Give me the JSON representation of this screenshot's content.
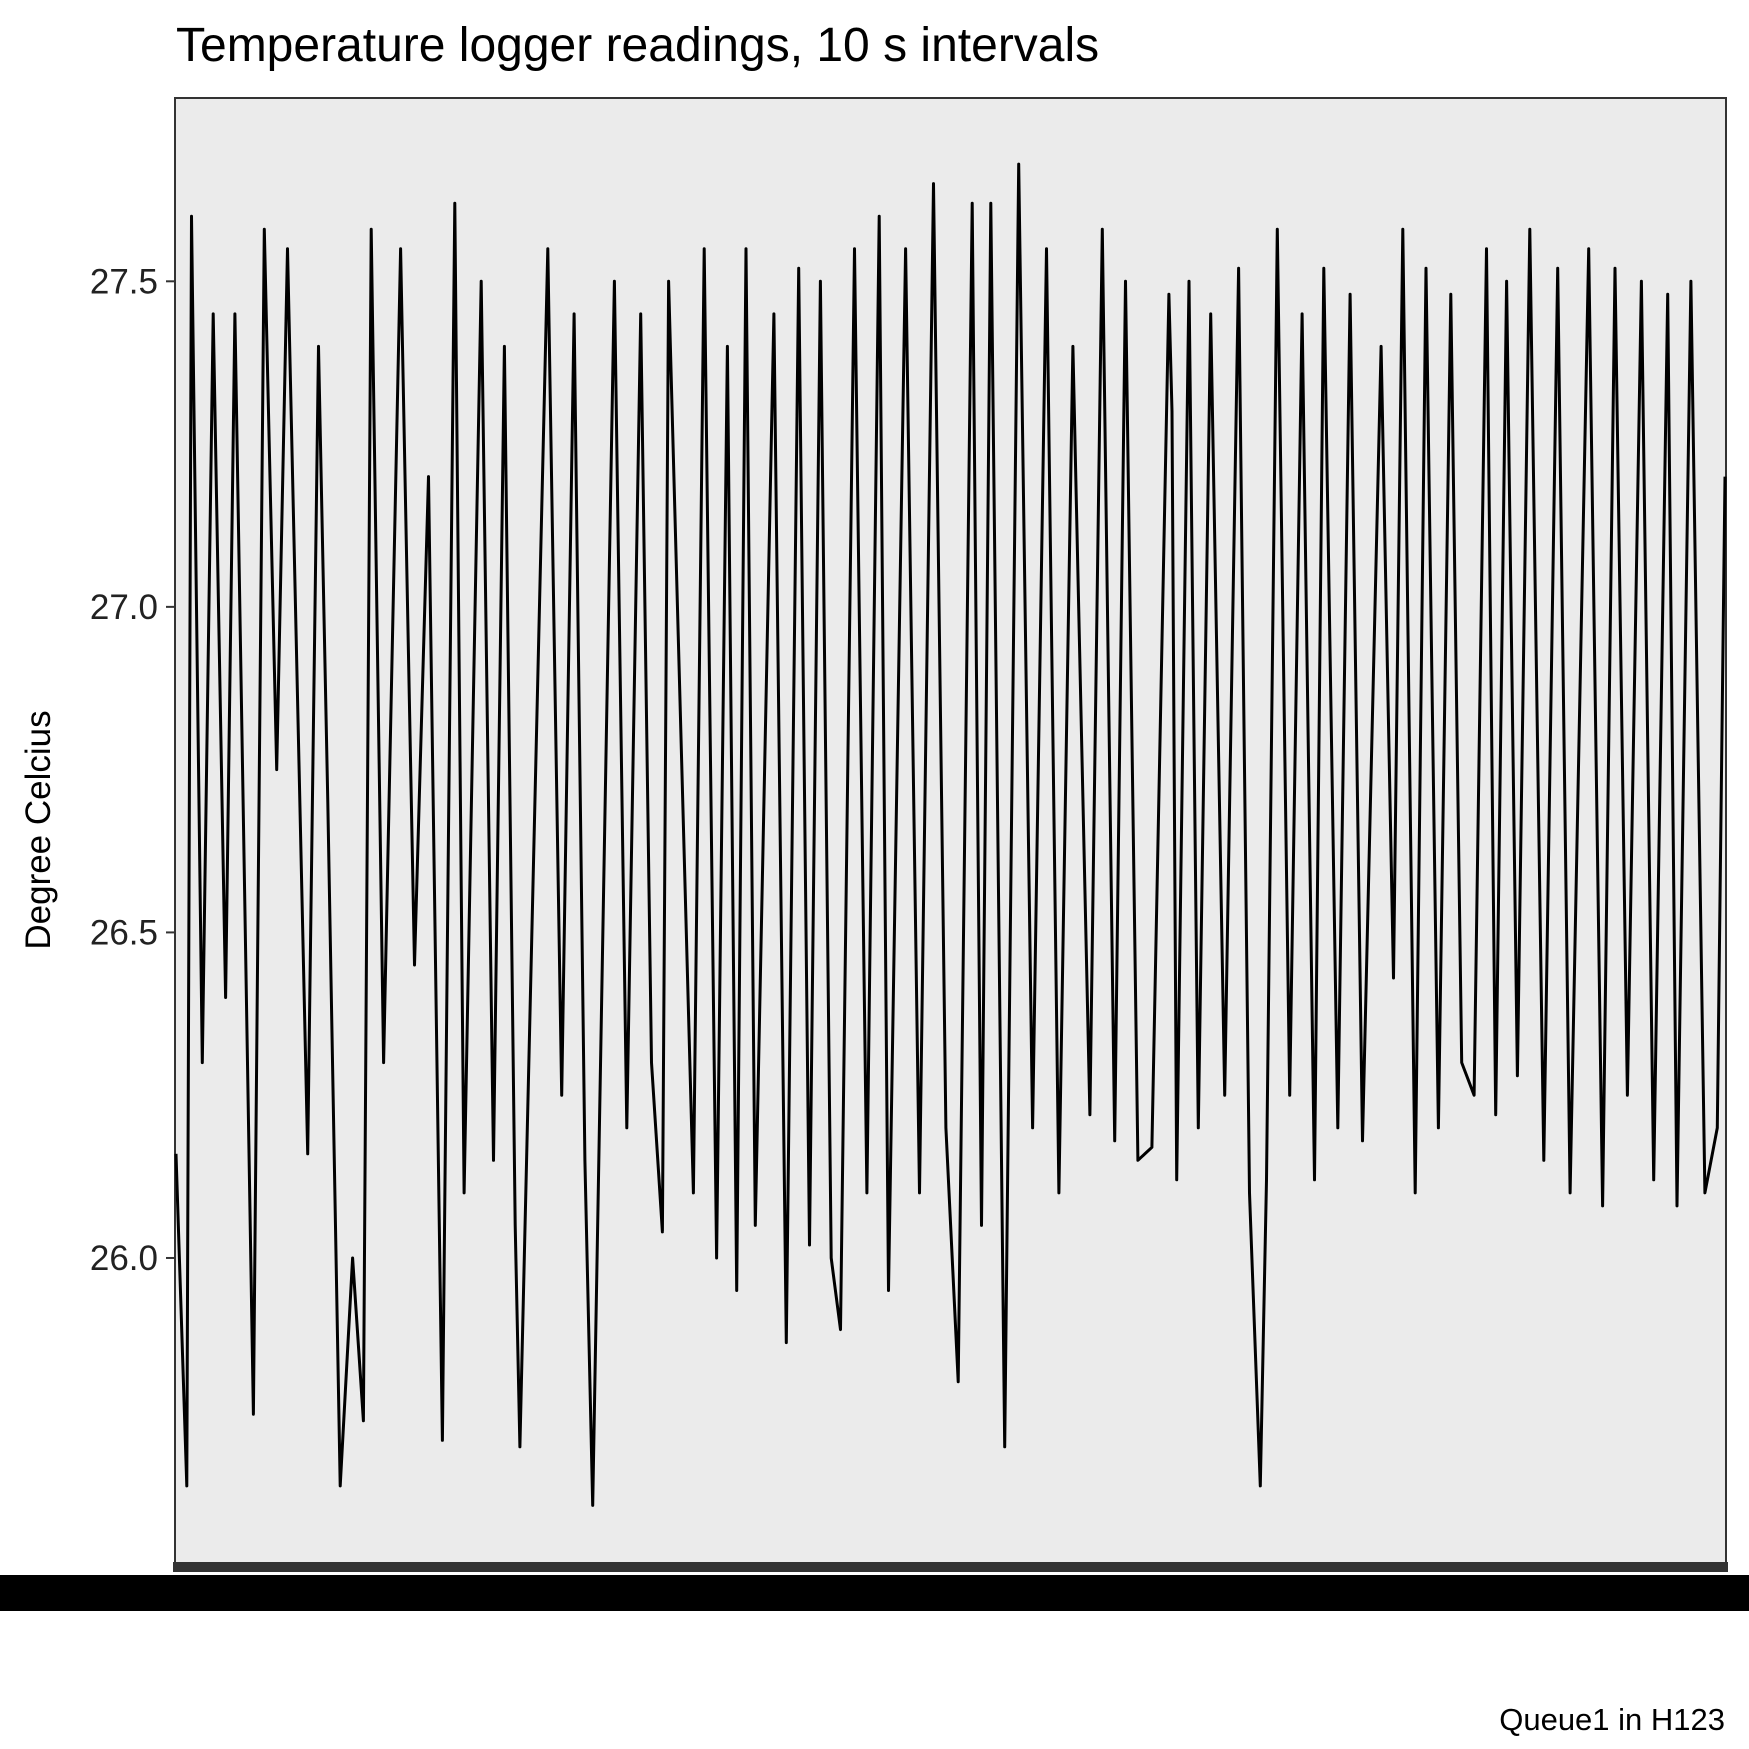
{
  "chart_data": {
    "type": "line",
    "title": "Temperature logger readings, 10 s intervals",
    "xlabel": "",
    "ylabel": "Degree Celcius",
    "caption": "Queue1 in H123",
    "ylim": [
      25.53,
      27.78
    ],
    "yticks": [
      26.0,
      26.5,
      27.0,
      27.5
    ],
    "ytick_labels": [
      "26.0",
      "26.5",
      "27.0",
      "27.5"
    ],
    "grid": false,
    "legend": "none",
    "background_color": "#ebebeb",
    "line_color": "#000000",
    "x_tick_labels_unreadable": true,
    "series": [
      {
        "x_fraction": [
          0.0,
          0.007,
          0.01,
          0.017,
          0.024,
          0.032,
          0.038,
          0.05,
          0.057,
          0.065,
          0.072,
          0.085,
          0.092,
          0.098,
          0.106,
          0.114,
          0.121,
          0.126,
          0.134,
          0.145,
          0.154,
          0.163,
          0.172,
          0.18,
          0.186,
          0.197,
          0.205,
          0.212,
          0.219,
          0.222,
          0.24,
          0.249,
          0.257,
          0.264,
          0.269,
          0.283,
          0.291,
          0.3,
          0.307,
          0.314,
          0.318,
          0.334,
          0.341,
          0.349,
          0.356,
          0.362,
          0.368,
          0.374,
          0.386,
          0.394,
          0.402,
          0.409,
          0.416,
          0.423,
          0.429,
          0.438,
          0.446,
          0.454,
          0.46,
          0.471,
          0.48,
          0.489,
          0.497,
          0.505,
          0.514,
          0.52,
          0.526,
          0.535,
          0.544,
          0.553,
          0.562,
          0.57,
          0.579,
          0.59,
          0.598,
          0.606,
          0.613,
          0.621,
          0.63,
          0.641,
          0.643,
          0.646,
          0.654,
          0.66,
          0.668,
          0.677,
          0.686,
          0.693,
          0.7,
          0.704,
          0.711,
          0.719,
          0.727,
          0.735,
          0.741,
          0.75,
          0.758,
          0.766,
          0.778,
          0.786,
          0.792,
          0.8,
          0.807,
          0.815,
          0.823,
          0.83,
          0.838,
          0.846,
          0.852,
          0.859,
          0.866,
          0.874,
          0.883,
          0.892,
          0.9,
          0.912,
          0.921,
          0.929,
          0.937,
          0.946,
          0.954,
          0.963,
          0.969,
          0.978,
          0.987,
          0.995,
          1.0
        ],
        "values": [
          26.16,
          25.65,
          27.6,
          26.3,
          27.45,
          26.4,
          27.45,
          25.76,
          27.58,
          26.75,
          27.55,
          26.16,
          27.4,
          26.7,
          25.65,
          26.0,
          25.75,
          27.58,
          26.3,
          27.55,
          26.45,
          27.2,
          25.72,
          27.62,
          26.1,
          27.5,
          26.15,
          27.4,
          26.05,
          25.71,
          27.55,
          26.25,
          27.45,
          26.15,
          25.62,
          27.5,
          26.2,
          27.45,
          26.3,
          26.04,
          27.5,
          26.1,
          27.55,
          26.0,
          27.4,
          25.95,
          27.55,
          26.05,
          27.45,
          25.87,
          27.52,
          26.02,
          27.5,
          26.0,
          25.89,
          27.55,
          26.1,
          27.6,
          25.95,
          27.55,
          26.1,
          27.65,
          26.2,
          25.81,
          27.62,
          26.05,
          27.62,
          25.71,
          27.68,
          26.2,
          27.55,
          26.1,
          27.4,
          26.22,
          27.58,
          26.18,
          27.5,
          26.15,
          26.17,
          27.48,
          27.3,
          26.12,
          27.5,
          26.2,
          27.45,
          26.25,
          27.52,
          26.1,
          25.65,
          26.12,
          27.58,
          26.25,
          27.45,
          26.12,
          27.52,
          26.2,
          27.48,
          26.18,
          27.4,
          26.43,
          27.58,
          26.1,
          27.52,
          26.2,
          27.48,
          26.3,
          26.25,
          27.55,
          26.22,
          27.5,
          26.28,
          27.58,
          26.15,
          27.52,
          26.1,
          27.55,
          26.08,
          27.52,
          26.25,
          27.5,
          26.12,
          27.48,
          26.08,
          27.5,
          26.1,
          26.2,
          27.2
        ]
      }
    ]
  }
}
